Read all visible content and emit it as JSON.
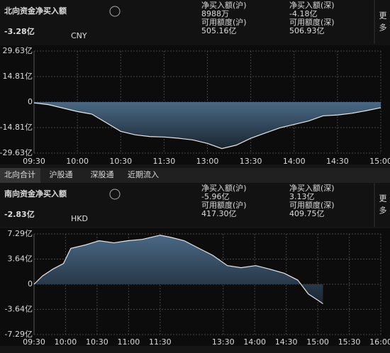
{
  "north": {
    "title": "北向资金净买入额",
    "amount": "-3.28亿",
    "currency": "CNY",
    "stats": [
      {
        "label": "净买入额(沪)",
        "value": "8988万"
      },
      {
        "label": "净买入额(深)",
        "value": "-4.18亿"
      },
      {
        "label": "可用额度(沪)",
        "value": "505.16亿"
      },
      {
        "label": "可用额度(深)",
        "value": "506.93亿"
      }
    ],
    "more": "更多"
  },
  "tabs": [
    "北向合计",
    "沪股通",
    "深股通",
    "近期流入"
  ],
  "south": {
    "title": "南向资金净买入额",
    "amount": "-2.83亿",
    "currency": "HKD",
    "stats": [
      {
        "label": "净买入额(沪)",
        "value": "-5.96亿"
      },
      {
        "label": "净买入额(深)",
        "value": "3.13亿"
      },
      {
        "label": "可用额度(沪)",
        "value": "417.30亿"
      },
      {
        "label": "可用额度(深)",
        "value": "409.75亿"
      }
    ],
    "more": "更多"
  },
  "chart_data": [
    {
      "type": "line",
      "color": "#e8e8e8",
      "x": [
        0,
        10,
        20,
        30,
        40,
        50,
        60,
        70,
        80,
        90,
        100,
        110,
        120,
        130,
        140,
        150,
        160,
        170,
        180,
        190,
        200,
        210,
        220,
        230,
        240
      ],
      "values": [
        -0.5,
        -1.5,
        -3.5,
        -5.5,
        -7,
        -12,
        -17,
        -19,
        -20,
        -20.3,
        -21,
        -22,
        -24,
        -27,
        -25,
        -21,
        -18,
        -15,
        -13,
        -11,
        -8,
        -7.5,
        -6.5,
        -5,
        -3.28
      ],
      "xlim": [
        0,
        240
      ],
      "ylim": [
        -29.63,
        29.63
      ],
      "yticks": [
        {
          "value": 29.63,
          "label": "29.63亿"
        },
        {
          "value": 14.81,
          "label": "14.81亿"
        },
        0,
        {
          "value": -14.81,
          "label": "-14.81亿"
        },
        {
          "value": -29.63,
          "label": "-29.63亿"
        }
      ],
      "xticks": [
        {
          "value": 0,
          "label": "09:30"
        },
        {
          "value": 30,
          "label": "10:00"
        },
        {
          "value": 60,
          "label": "10:30"
        },
        {
          "value": 90,
          "label": "11:30"
        },
        {
          "value": 120,
          "label": "13:00"
        },
        {
          "value": 150,
          "label": "13:30"
        },
        {
          "value": 180,
          "label": "14:00"
        },
        {
          "value": 210,
          "label": "14:30"
        },
        {
          "value": 240,
          "label": "15:00"
        }
      ],
      "grid": true
    },
    {
      "type": "line",
      "color": "#e8e8e8",
      "x": [
        0,
        8,
        18,
        28,
        35,
        49,
        62,
        76,
        89,
        103,
        120,
        130,
        143,
        157,
        170,
        184,
        197,
        211,
        224,
        238,
        251,
        261,
        272,
        275
      ],
      "values": [
        0,
        1.2,
        2.2,
        3,
        5.2,
        5.7,
        6.3,
        6,
        6.3,
        6.5,
        7.1,
        6.8,
        6.3,
        5.2,
        4.2,
        2.7,
        2.4,
        2.7,
        2.2,
        1.6,
        0.6,
        -1.4,
        -2.5,
        -2.83
      ],
      "xlim": [
        0,
        330
      ],
      "ylim": [
        -7.29,
        7.29
      ],
      "yticks": [
        {
          "value": 7.29,
          "label": "7.29亿"
        },
        {
          "value": 3.64,
          "label": "3.64亿"
        },
        0,
        {
          "value": -3.64,
          "label": "-3.64亿"
        },
        {
          "value": -7.29,
          "label": "-7.29亿"
        }
      ],
      "xticks": [
        {
          "value": 0,
          "label": "09:30"
        },
        {
          "value": 30,
          "label": "10:00"
        },
        {
          "value": 60,
          "label": "10:30"
        },
        {
          "value": 90,
          "label": "11:00"
        },
        {
          "value": 120,
          "label": "11:30"
        },
        {
          "value": 180,
          "label": "13:30"
        },
        {
          "value": 210,
          "label": "14:00"
        },
        {
          "value": 240,
          "label": "14:30"
        },
        {
          "value": 270,
          "label": "15:00"
        },
        {
          "value": 300,
          "label": "15:30"
        },
        {
          "value": 330,
          "label": "16:00"
        }
      ],
      "grid": true
    }
  ]
}
